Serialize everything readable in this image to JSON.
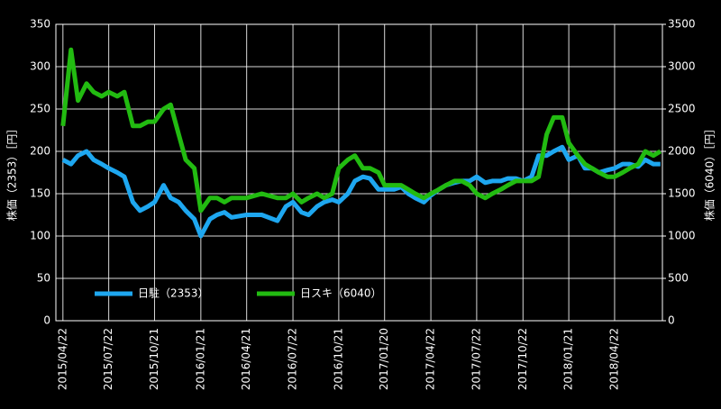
{
  "chart_data": {
    "type": "line",
    "ylabel": "株価（2353）［円］",
    "y2label": "株価（6040）［円］",
    "x": [
      "2015/04/22",
      "2015/05/08",
      "2015/05/22",
      "2015/06/08",
      "2015/06/22",
      "2015/07/08",
      "2015/07/22",
      "2015/08/08",
      "2015/08/22",
      "2015/09/08",
      "2015/09/22",
      "2015/10/08",
      "2015/10/21",
      "2015/11/08",
      "2015/11/22",
      "2015/12/08",
      "2015/12/22",
      "2016/01/08",
      "2016/01/21",
      "2016/02/08",
      "2016/02/22",
      "2016/03/08",
      "2016/03/22",
      "2016/04/21",
      "2016/05/21",
      "2016/06/21",
      "2016/07/08",
      "2016/07/22",
      "2016/08/08",
      "2016/08/22",
      "2016/09/08",
      "2016/09/22",
      "2016/10/08",
      "2016/10/21",
      "2016/11/08",
      "2016/11/22",
      "2016/12/08",
      "2016/12/22",
      "2017/01/08",
      "2017/01/20",
      "2017/02/08",
      "2017/02/22",
      "2017/03/08",
      "2017/03/22",
      "2017/04/08",
      "2017/04/22",
      "2017/05/08",
      "2017/05/22",
      "2017/06/08",
      "2017/06/22",
      "2017/07/08",
      "2017/07/22",
      "2017/08/08",
      "2017/08/22",
      "2017/09/08",
      "2017/09/22",
      "2017/10/08",
      "2017/10/22",
      "2017/11/08",
      "2017/11/22",
      "2017/12/08",
      "2017/12/22",
      "2018/01/08",
      "2018/01/21",
      "2018/02/08",
      "2018/02/22",
      "2018/03/08",
      "2018/03/22",
      "2018/04/08",
      "2018/04/22",
      "2018/05/08",
      "2018/05/22",
      "2018/06/08",
      "2018/06/22",
      "2018/07/08",
      "2018/07/22"
    ],
    "series": [
      {
        "name": "日駐（2353）",
        "color": "#1ea7f0",
        "axis": "y",
        "values": [
          190,
          185,
          195,
          200,
          190,
          185,
          180,
          175,
          170,
          140,
          130,
          135,
          140,
          160,
          145,
          140,
          130,
          120,
          100,
          120,
          125,
          128,
          122,
          125,
          125,
          118,
          135,
          140,
          128,
          125,
          135,
          140,
          143,
          140,
          150,
          165,
          170,
          168,
          155,
          155,
          155,
          158,
          150,
          145,
          140,
          148,
          155,
          160,
          163,
          165,
          165,
          170,
          163,
          165,
          165,
          168,
          168,
          165,
          170,
          195,
          195,
          200,
          205,
          190,
          195,
          180,
          180,
          175,
          178,
          180,
          185,
          185,
          182,
          190,
          185,
          185
        ]
      },
      {
        "name": "日スキ（6040）",
        "color": "#22bb11",
        "axis": "y2",
        "values": [
          2300,
          3200,
          2600,
          2800,
          2700,
          2650,
          2700,
          2650,
          2700,
          2300,
          2300,
          2350,
          2350,
          2500,
          2550,
          2200,
          1900,
          1800,
          1300,
          1450,
          1450,
          1400,
          1450,
          1450,
          1500,
          1450,
          1450,
          1500,
          1400,
          1450,
          1500,
          1450,
          1500,
          1800,
          1900,
          1950,
          1800,
          1800,
          1750,
          1600,
          1600,
          1600,
          1550,
          1500,
          1450,
          1500,
          1550,
          1600,
          1650,
          1650,
          1600,
          1500,
          1450,
          1500,
          1550,
          1600,
          1650,
          1650,
          1650,
          1700,
          2200,
          2400,
          2400,
          2100,
          1950,
          1850,
          1800,
          1750,
          1700,
          1700,
          1750,
          1800,
          1850,
          2000,
          1950,
          2000
        ]
      }
    ],
    "xlim": [
      "2015/04/08",
      "2018/07/26"
    ],
    "xticks": [
      "2015/04/22",
      "2015/07/22",
      "2015/10/21",
      "2016/01/21",
      "2016/04/21",
      "2016/07/22",
      "2016/10/21",
      "2017/01/20",
      "2017/04/22",
      "2017/07/22",
      "2017/10/22",
      "2018/01/21",
      "2018/04/22"
    ],
    "ylim": [
      0,
      350
    ],
    "yticks": [
      0,
      50,
      100,
      150,
      200,
      250,
      300,
      350
    ],
    "y2lim": [
      0,
      3500
    ],
    "y2ticks": [
      0,
      500,
      1000,
      1500,
      2000,
      2500,
      3000,
      3500
    ],
    "grid": true,
    "legend": "lower left"
  }
}
